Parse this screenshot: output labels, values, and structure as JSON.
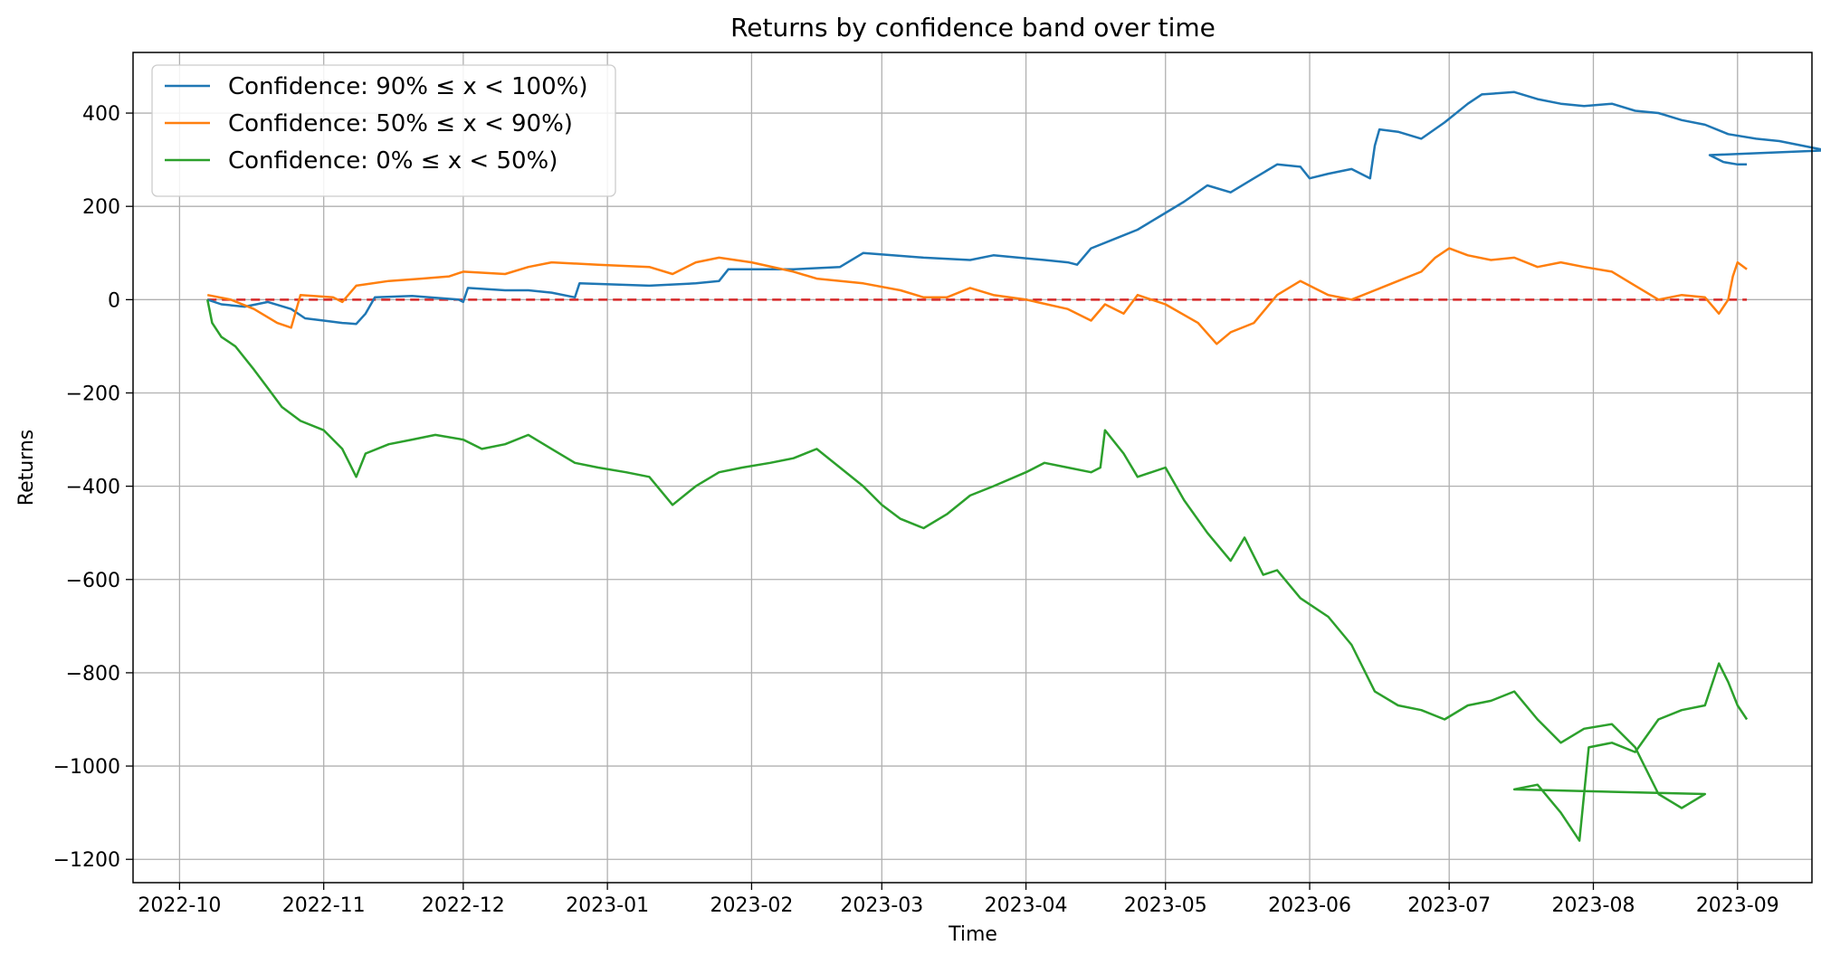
{
  "chart_data": {
    "type": "line",
    "title": "Returns by confidence band over time",
    "xlabel": "Time",
    "ylabel": "Returns",
    "xlim": [
      "2022-09-21",
      "2023-09-17"
    ],
    "ylim": [
      -1250,
      530
    ],
    "x_ticks": [
      "2022-10",
      "2022-11",
      "2022-12",
      "2023-01",
      "2023-02",
      "2023-03",
      "2023-04",
      "2023-05",
      "2023-06",
      "2023-07",
      "2023-08",
      "2023-09"
    ],
    "y_ticks": [
      400,
      200,
      0,
      -200,
      -400,
      -600,
      -800,
      -1000,
      -1200
    ],
    "grid": true,
    "legend_position": "top-left",
    "reference_line": {
      "y": 0,
      "color": "#d62728",
      "style": "dashed",
      "x_start": "2022-10-07",
      "x_end": "2023-09-03"
    },
    "series": [
      {
        "name": "Confidence: 90% ≤ x < 100%)",
        "color": "#1f77b4",
        "points": [
          [
            "2022-10-07",
            0
          ],
          [
            "2022-10-10",
            -10
          ],
          [
            "2022-10-15",
            -15
          ],
          [
            "2022-10-20",
            -5
          ],
          [
            "2022-10-25",
            -20
          ],
          [
            "2022-10-28",
            -40
          ],
          [
            "2022-11-01",
            -45
          ],
          [
            "2022-11-05",
            -50
          ],
          [
            "2022-11-08",
            -52
          ],
          [
            "2022-11-10",
            -30
          ],
          [
            "2022-11-12",
            5
          ],
          [
            "2022-11-20",
            8
          ],
          [
            "2022-11-30",
            0
          ],
          [
            "2022-12-01",
            -5
          ],
          [
            "2022-12-02",
            25
          ],
          [
            "2022-12-10",
            20
          ],
          [
            "2022-12-15",
            20
          ],
          [
            "2022-12-20",
            15
          ],
          [
            "2022-12-25",
            5
          ],
          [
            "2022-12-26",
            35
          ],
          [
            "2023-01-10",
            30
          ],
          [
            "2023-01-20",
            35
          ],
          [
            "2023-01-25",
            40
          ],
          [
            "2023-01-27",
            65
          ],
          [
            "2023-02-10",
            65
          ],
          [
            "2023-02-20",
            70
          ],
          [
            "2023-02-25",
            100
          ],
          [
            "2023-03-10",
            90
          ],
          [
            "2023-03-20",
            85
          ],
          [
            "2023-03-25",
            95
          ],
          [
            "2023-04-05",
            85
          ],
          [
            "2023-04-10",
            80
          ],
          [
            "2023-04-12",
            75
          ],
          [
            "2023-04-15",
            110
          ],
          [
            "2023-04-20",
            130
          ],
          [
            "2023-04-25",
            150
          ],
          [
            "2023-04-30",
            180
          ],
          [
            "2023-05-05",
            210
          ],
          [
            "2023-05-10",
            245
          ],
          [
            "2023-05-15",
            230
          ],
          [
            "2023-05-20",
            260
          ],
          [
            "2023-05-25",
            290
          ],
          [
            "2023-05-30",
            285
          ],
          [
            "2023-06-01",
            260
          ],
          [
            "2023-06-05",
            270
          ],
          [
            "2023-06-10",
            280
          ],
          [
            "2023-06-14",
            260
          ],
          [
            "2023-06-15",
            330
          ],
          [
            "2023-06-16",
            365
          ],
          [
            "2023-06-20",
            360
          ],
          [
            "2023-06-25",
            345
          ],
          [
            "2023-06-30",
            380
          ],
          [
            "2023-07-05",
            420
          ],
          [
            "2023-07-08",
            440
          ],
          [
            "2023-07-15",
            445
          ],
          [
            "2023-07-20",
            430
          ],
          [
            "2023-07-25",
            420
          ],
          [
            "2023-07-30",
            415
          ],
          [
            "2023-08-05",
            420
          ],
          [
            "2023-08-10",
            405
          ],
          [
            "2023-08-15",
            400
          ],
          [
            "2023-08-20",
            385
          ],
          [
            "2023-08-25",
            375
          ],
          [
            "2023-08-30",
            355
          ],
          [
            "2023-09-05",
            345
          ],
          [
            "2023-09-10",
            340
          ],
          [
            "2023-09-15",
            330
          ],
          [
            "2023-09-20",
            320
          ],
          [
            "2023-08-26",
            310
          ],
          [
            "2023-08-29",
            295
          ],
          [
            "2023-09-01",
            290
          ],
          [
            "2023-09-03",
            290
          ]
        ]
      },
      {
        "name": "Confidence: 50% ≤ x < 90%)",
        "color": "#ff7f0e",
        "points": [
          [
            "2022-10-07",
            10
          ],
          [
            "2022-10-12",
            0
          ],
          [
            "2022-10-17",
            -20
          ],
          [
            "2022-10-22",
            -50
          ],
          [
            "2022-10-25",
            -60
          ],
          [
            "2022-10-27",
            10
          ],
          [
            "2022-11-03",
            5
          ],
          [
            "2022-11-05",
            -5
          ],
          [
            "2022-11-08",
            30
          ],
          [
            "2022-11-15",
            40
          ],
          [
            "2022-11-22",
            45
          ],
          [
            "2022-11-28",
            50
          ],
          [
            "2022-12-01",
            60
          ],
          [
            "2022-12-10",
            55
          ],
          [
            "2022-12-15",
            70
          ],
          [
            "2022-12-20",
            80
          ],
          [
            "2022-12-30",
            75
          ],
          [
            "2023-01-10",
            70
          ],
          [
            "2023-01-15",
            55
          ],
          [
            "2023-01-20",
            80
          ],
          [
            "2023-01-25",
            90
          ],
          [
            "2023-02-01",
            80
          ],
          [
            "2023-02-10",
            60
          ],
          [
            "2023-02-15",
            45
          ],
          [
            "2023-02-25",
            35
          ],
          [
            "2023-03-05",
            20
          ],
          [
            "2023-03-10",
            5
          ],
          [
            "2023-03-15",
            5
          ],
          [
            "2023-03-20",
            25
          ],
          [
            "2023-03-25",
            10
          ],
          [
            "2023-04-01",
            0
          ],
          [
            "2023-04-10",
            -20
          ],
          [
            "2023-04-15",
            -45
          ],
          [
            "2023-04-18",
            -10
          ],
          [
            "2023-04-22",
            -30
          ],
          [
            "2023-04-25",
            10
          ],
          [
            "2023-05-01",
            -10
          ],
          [
            "2023-05-08",
            -50
          ],
          [
            "2023-05-12",
            -95
          ],
          [
            "2023-05-15",
            -70
          ],
          [
            "2023-05-20",
            -50
          ],
          [
            "2023-05-25",
            10
          ],
          [
            "2023-05-30",
            40
          ],
          [
            "2023-06-05",
            10
          ],
          [
            "2023-06-10",
            0
          ],
          [
            "2023-06-15",
            20
          ],
          [
            "2023-06-20",
            40
          ],
          [
            "2023-06-25",
            60
          ],
          [
            "2023-06-28",
            90
          ],
          [
            "2023-07-01",
            110
          ],
          [
            "2023-07-05",
            95
          ],
          [
            "2023-07-10",
            85
          ],
          [
            "2023-07-15",
            90
          ],
          [
            "2023-07-20",
            70
          ],
          [
            "2023-07-25",
            80
          ],
          [
            "2023-07-30",
            70
          ],
          [
            "2023-08-05",
            60
          ],
          [
            "2023-08-10",
            30
          ],
          [
            "2023-08-15",
            0
          ],
          [
            "2023-08-20",
            10
          ],
          [
            "2023-08-25",
            5
          ],
          [
            "2023-08-28",
            -30
          ],
          [
            "2023-08-30",
            0
          ],
          [
            "2023-08-31",
            50
          ],
          [
            "2023-09-01",
            80
          ],
          [
            "2023-09-03",
            65
          ]
        ]
      },
      {
        "name": "Confidence: 0% ≤ x < 50%)",
        "color": "#2ca02c",
        "points": [
          [
            "2022-10-07",
            0
          ],
          [
            "2022-10-08",
            -50
          ],
          [
            "2022-10-10",
            -80
          ],
          [
            "2022-10-13",
            -100
          ],
          [
            "2022-10-17",
            -150
          ],
          [
            "2022-10-20",
            -190
          ],
          [
            "2022-10-23",
            -230
          ],
          [
            "2022-10-27",
            -260
          ],
          [
            "2022-11-01",
            -280
          ],
          [
            "2022-11-05",
            -320
          ],
          [
            "2022-11-08",
            -380
          ],
          [
            "2022-11-10",
            -330
          ],
          [
            "2022-11-15",
            -310
          ],
          [
            "2022-11-20",
            -300
          ],
          [
            "2022-11-25",
            -290
          ],
          [
            "2022-12-01",
            -300
          ],
          [
            "2022-12-05",
            -320
          ],
          [
            "2022-12-10",
            -310
          ],
          [
            "2022-12-15",
            -290
          ],
          [
            "2022-12-20",
            -320
          ],
          [
            "2022-12-25",
            -350
          ],
          [
            "2022-12-30",
            -360
          ],
          [
            "2023-01-05",
            -370
          ],
          [
            "2023-01-10",
            -380
          ],
          [
            "2023-01-15",
            -440
          ],
          [
            "2023-01-20",
            -400
          ],
          [
            "2023-01-25",
            -370
          ],
          [
            "2023-01-30",
            -360
          ],
          [
            "2023-02-05",
            -350
          ],
          [
            "2023-02-10",
            -340
          ],
          [
            "2023-02-15",
            -320
          ],
          [
            "2023-02-20",
            -360
          ],
          [
            "2023-02-25",
            -400
          ],
          [
            "2023-03-01",
            -440
          ],
          [
            "2023-03-05",
            -470
          ],
          [
            "2023-03-10",
            -490
          ],
          [
            "2023-03-15",
            -460
          ],
          [
            "2023-03-20",
            -420
          ],
          [
            "2023-03-25",
            -400
          ],
          [
            "2023-04-01",
            -370
          ],
          [
            "2023-04-05",
            -350
          ],
          [
            "2023-04-10",
            -360
          ],
          [
            "2023-04-15",
            -370
          ],
          [
            "2023-04-17",
            -360
          ],
          [
            "2023-04-18",
            -280
          ],
          [
            "2023-04-22",
            -330
          ],
          [
            "2023-04-25",
            -380
          ],
          [
            "2023-05-01",
            -360
          ],
          [
            "2023-05-05",
            -430
          ],
          [
            "2023-05-10",
            -500
          ],
          [
            "2023-05-15",
            -560
          ],
          [
            "2023-05-18",
            -510
          ],
          [
            "2023-05-22",
            -590
          ],
          [
            "2023-05-25",
            -580
          ],
          [
            "2023-05-30",
            -640
          ],
          [
            "2023-06-05",
            -680
          ],
          [
            "2023-06-10",
            -740
          ],
          [
            "2023-06-15",
            -840
          ],
          [
            "2023-06-20",
            -870
          ],
          [
            "2023-06-25",
            -880
          ],
          [
            "2023-06-30",
            -900
          ],
          [
            "2023-07-05",
            -870
          ],
          [
            "2023-07-10",
            -860
          ],
          [
            "2023-07-15",
            -840
          ],
          [
            "2023-07-20",
            -900
          ],
          [
            "2023-07-25",
            -950
          ],
          [
            "2023-07-30",
            -920
          ],
          [
            "2023-08-05",
            -910
          ],
          [
            "2023-08-10",
            -960
          ],
          [
            "2023-08-15",
            -1060
          ],
          [
            "2023-08-20",
            -1090
          ],
          [
            "2023-08-25",
            -1060
          ],
          [
            "2023-07-15",
            -1050
          ],
          [
            "2023-07-20",
            -1040
          ],
          [
            "2023-07-25",
            -1100
          ],
          [
            "2023-07-29",
            -1160
          ],
          [
            "2023-07-31",
            -960
          ],
          [
            "2023-08-05",
            -950
          ],
          [
            "2023-08-10",
            -970
          ],
          [
            "2023-08-15",
            -900
          ],
          [
            "2023-08-20",
            -880
          ],
          [
            "2023-08-25",
            -870
          ],
          [
            "2023-08-28",
            -780
          ],
          [
            "2023-08-30",
            -820
          ],
          [
            "2023-09-01",
            -870
          ],
          [
            "2023-09-03",
            -900
          ]
        ]
      }
    ]
  }
}
